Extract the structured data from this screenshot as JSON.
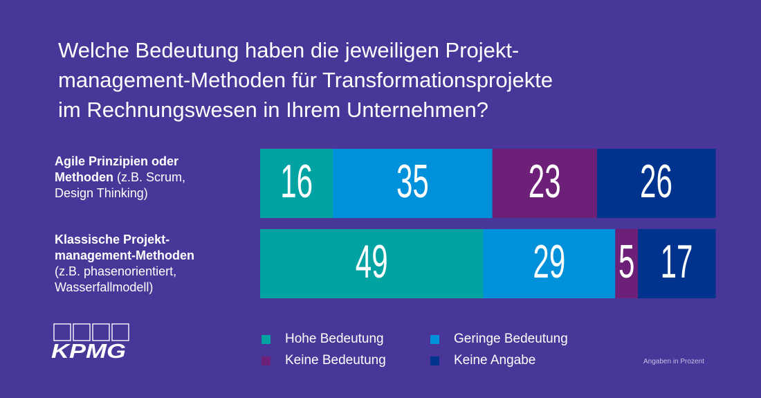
{
  "title_lines": [
    "Welche Bedeutung haben die jeweiligen Projekt-",
    "management-Methoden für Transformationsprojekte",
    "im Rechnungswesen in Ihrem Unternehmen?"
  ],
  "rows": [
    {
      "label_bold": "Agile Prinzipien oder Methoden",
      "label_bold_lines": [
        "Agile Prinzipien oder",
        "Methoden"
      ],
      "label_rest": " (z.B. Scrum, Design Thinking)",
      "label_rest_lines": [
        " (z.B. Scrum,",
        "Design Thinking)"
      ]
    },
    {
      "label_bold": "Klassische Projekt-management-Methoden",
      "label_bold_lines": [
        "Klassische Projekt-",
        "management-Methoden"
      ],
      "label_rest": "(z.B. phasenorientiert, Wasserfallmodell)",
      "label_rest_lines": [
        "(z.B. phasenorientiert,",
        "Wasserfallmodell)"
      ]
    }
  ],
  "chart_data": {
    "type": "bar",
    "orientation": "horizontal",
    "stacked": true,
    "title": "Welche Bedeutung haben die jeweiligen Projektmanagement-Methoden für Transformationsprojekte im Rechnungswesen in Ihrem Unternehmen?",
    "categories": [
      "Agile Prinzipien oder Methoden (z.B. Scrum, Design Thinking)",
      "Klassische Projektmanagement-Methoden (z.B. phasenorientiert, Wasserfallmodell)"
    ],
    "series": [
      {
        "name": "Hohe Bedeutung",
        "color": "#00a3a1",
        "values": [
          16,
          49
        ]
      },
      {
        "name": "Geringe Bedeutung",
        "color": "#0091da",
        "values": [
          35,
          29
        ]
      },
      {
        "name": "Keine Bedeutung",
        "color": "#6d2077",
        "values": [
          23,
          5
        ]
      },
      {
        "name": "Keine Angabe",
        "color": "#00338d",
        "values": [
          26,
          17
        ]
      }
    ],
    "xlim": [
      0,
      100
    ],
    "unit": "Angaben in Prozent",
    "legend": "bottom",
    "grid": false
  },
  "footnote": "Angaben in Prozent",
  "logo_text": "KPMG",
  "colors": {
    "background": "#483698",
    "text": "#ffffff"
  }
}
